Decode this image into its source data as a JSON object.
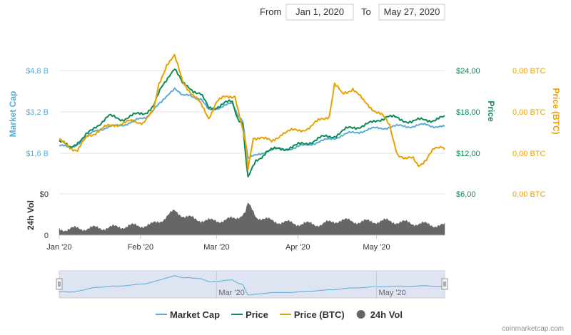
{
  "range_selector": {
    "from_label": "From",
    "from_value": "Jan 1, 2020",
    "to_label": "To",
    "to_value": "May 27, 2020"
  },
  "chart_data": {
    "type": "line",
    "x_start": "2020-01-01",
    "x_end": "2020-05-27",
    "x_tick_labels": [
      "Jan '20",
      "Feb '20",
      "Mar '20",
      "Apr '20",
      "May '20"
    ],
    "navigator_tick_labels": [
      "Mar '20",
      "May '20"
    ],
    "axes": {
      "market_cap": {
        "title": "Market Cap",
        "ticks": [
          "$1,6 B",
          "$3,2 B",
          "$4,8 B"
        ],
        "tick_values": [
          1.6,
          3.2,
          4.8
        ],
        "color": "#5bacd8"
      },
      "price": {
        "title": "Price",
        "ticks": [
          "$6,00",
          "$12,00",
          "$18,00",
          "$24,00"
        ],
        "tick_values": [
          6,
          12,
          18,
          24
        ],
        "color": "#0e8a55"
      },
      "price_btc": {
        "title": "Price (BTC)",
        "ticks": [
          "0,00 BTC",
          "0,00 BTC",
          "0,00 BTC",
          "0,00 BTC"
        ],
        "color": "#e9a100"
      },
      "volume": {
        "title": "24h Vol",
        "ticks": [
          "$0",
          "0"
        ],
        "color": "#333333"
      }
    },
    "series": [
      {
        "name": "Market Cap",
        "axis": "market_cap",
        "color": "#5bacd8",
        "points": [
          [
            "2020-01-01",
            1.9
          ],
          [
            "2020-01-05",
            1.8
          ],
          [
            "2020-01-10",
            2.1
          ],
          [
            "2020-01-15",
            2.5
          ],
          [
            "2020-01-20",
            2.6
          ],
          [
            "2020-01-25",
            2.7
          ],
          [
            "2020-01-30",
            2.85
          ],
          [
            "2020-02-03",
            3.0
          ],
          [
            "2020-02-06",
            3.3
          ],
          [
            "2020-02-09",
            3.55
          ],
          [
            "2020-02-12",
            3.95
          ],
          [
            "2020-02-14",
            4.15
          ],
          [
            "2020-02-17",
            3.8
          ],
          [
            "2020-02-20",
            3.85
          ],
          [
            "2020-02-24",
            3.7
          ],
          [
            "2020-02-27",
            3.25
          ],
          [
            "2020-03-01",
            3.35
          ],
          [
            "2020-03-04",
            3.45
          ],
          [
            "2020-03-07",
            3.5
          ],
          [
            "2020-03-09",
            3.1
          ],
          [
            "2020-03-11",
            2.9
          ],
          [
            "2020-03-12",
            2.1
          ],
          [
            "2020-03-13",
            1.4
          ],
          [
            "2020-03-16",
            1.5
          ],
          [
            "2020-03-20",
            1.7
          ],
          [
            "2020-03-25",
            1.75
          ],
          [
            "2020-03-31",
            1.8
          ],
          [
            "2020-04-05",
            1.95
          ],
          [
            "2020-04-10",
            2.05
          ],
          [
            "2020-04-15",
            2.2
          ],
          [
            "2020-04-20",
            2.35
          ],
          [
            "2020-04-25",
            2.45
          ],
          [
            "2020-04-30",
            2.55
          ],
          [
            "2020-05-05",
            2.6
          ],
          [
            "2020-05-10",
            2.65
          ],
          [
            "2020-05-15",
            2.65
          ],
          [
            "2020-05-20",
            2.7
          ],
          [
            "2020-05-27",
            2.6
          ]
        ]
      },
      {
        "name": "Price",
        "axis": "price",
        "color": "#0e8a55",
        "points": [
          [
            "2020-01-01",
            13.6
          ],
          [
            "2020-01-05",
            13.0
          ],
          [
            "2020-01-10",
            14.0
          ],
          [
            "2020-01-15",
            16.0
          ],
          [
            "2020-01-20",
            17.3
          ],
          [
            "2020-01-25",
            17.0
          ],
          [
            "2020-01-30",
            17.5
          ],
          [
            "2020-02-03",
            18.0
          ],
          [
            "2020-02-06",
            18.8
          ],
          [
            "2020-02-09",
            21.5
          ],
          [
            "2020-02-12",
            23.5
          ],
          [
            "2020-02-14",
            24.4
          ],
          [
            "2020-02-17",
            22.0
          ],
          [
            "2020-02-20",
            21.5
          ],
          [
            "2020-02-24",
            20.5
          ],
          [
            "2020-02-27",
            18.5
          ],
          [
            "2020-03-01",
            18.8
          ],
          [
            "2020-03-04",
            19.2
          ],
          [
            "2020-03-07",
            19.4
          ],
          [
            "2020-03-09",
            17.2
          ],
          [
            "2020-03-11",
            16.5
          ],
          [
            "2020-03-12",
            12.0
          ],
          [
            "2020-03-13",
            8.3
          ],
          [
            "2020-03-16",
            10.8
          ],
          [
            "2020-03-20",
            12.3
          ],
          [
            "2020-03-25",
            12.6
          ],
          [
            "2020-03-31",
            13.0
          ],
          [
            "2020-04-05",
            13.6
          ],
          [
            "2020-04-10",
            14.2
          ],
          [
            "2020-04-15",
            14.6
          ],
          [
            "2020-04-20",
            15.5
          ],
          [
            "2020-04-25",
            16.0
          ],
          [
            "2020-04-30",
            16.4
          ],
          [
            "2020-05-05",
            17.5
          ],
          [
            "2020-05-10",
            16.8
          ],
          [
            "2020-05-15",
            16.7
          ],
          [
            "2020-05-20",
            16.8
          ],
          [
            "2020-05-27",
            17.1
          ]
        ]
      },
      {
        "name": "Price (BTC)",
        "axis": "price",
        "color": "#e9a100",
        "points": [
          [
            "2020-01-01",
            13.8
          ],
          [
            "2020-01-04",
            13.2
          ],
          [
            "2020-01-08",
            12.4
          ],
          [
            "2020-01-12",
            14.5
          ],
          [
            "2020-01-16",
            15.3
          ],
          [
            "2020-01-22",
            16.2
          ],
          [
            "2020-01-28",
            16.5
          ],
          [
            "2020-02-02",
            16.6
          ],
          [
            "2020-02-06",
            18.0
          ],
          [
            "2020-02-08",
            22.0
          ],
          [
            "2020-02-11",
            25.0
          ],
          [
            "2020-02-14",
            26.0
          ],
          [
            "2020-02-17",
            22.5
          ],
          [
            "2020-02-20",
            21.0
          ],
          [
            "2020-02-24",
            19.0
          ],
          [
            "2020-02-27",
            17.2
          ],
          [
            "2020-03-01",
            19.5
          ],
          [
            "2020-03-04",
            20.0
          ],
          [
            "2020-03-08",
            20.5
          ],
          [
            "2020-03-10",
            17.0
          ],
          [
            "2020-03-12",
            13.5
          ],
          [
            "2020-03-13",
            9.5
          ],
          [
            "2020-03-15",
            14.2
          ],
          [
            "2020-03-18",
            14.5
          ],
          [
            "2020-03-22",
            13.5
          ],
          [
            "2020-03-26",
            15.0
          ],
          [
            "2020-04-01",
            15.3
          ],
          [
            "2020-04-06",
            15.8
          ],
          [
            "2020-04-10",
            17.0
          ],
          [
            "2020-04-13",
            17.5
          ],
          [
            "2020-04-15",
            22.0
          ],
          [
            "2020-04-18",
            20.5
          ],
          [
            "2020-04-22",
            21.5
          ],
          [
            "2020-04-26",
            19.5
          ],
          [
            "2020-04-30",
            18.4
          ],
          [
            "2020-05-03",
            17.5
          ],
          [
            "2020-05-06",
            16.0
          ],
          [
            "2020-05-09",
            12.0
          ],
          [
            "2020-05-12",
            11.0
          ],
          [
            "2020-05-15",
            11.3
          ],
          [
            "2020-05-17",
            10.4
          ],
          [
            "2020-05-20",
            11.0
          ],
          [
            "2020-05-23",
            12.5
          ],
          [
            "2020-05-26",
            13.2
          ],
          [
            "2020-05-27",
            12.8
          ]
        ]
      },
      {
        "name": "24h Vol",
        "axis": "volume",
        "color": "#666666",
        "type": "area",
        "points": [
          [
            "2020-01-01",
            0.14
          ],
          [
            "2020-01-10",
            0.16
          ],
          [
            "2020-01-20",
            0.18
          ],
          [
            "2020-01-28",
            0.22
          ],
          [
            "2020-02-05",
            0.24
          ],
          [
            "2020-02-10",
            0.4
          ],
          [
            "2020-02-14",
            0.58
          ],
          [
            "2020-02-18",
            0.45
          ],
          [
            "2020-02-22",
            0.38
          ],
          [
            "2020-02-28",
            0.34
          ],
          [
            "2020-03-04",
            0.36
          ],
          [
            "2020-03-08",
            0.4
          ],
          [
            "2020-03-12",
            0.55
          ],
          [
            "2020-03-13",
            0.75
          ],
          [
            "2020-03-16",
            0.45
          ],
          [
            "2020-03-22",
            0.34
          ],
          [
            "2020-03-31",
            0.28
          ],
          [
            "2020-04-10",
            0.26
          ],
          [
            "2020-04-17",
            0.36
          ],
          [
            "2020-04-25",
            0.32
          ],
          [
            "2020-05-05",
            0.34
          ],
          [
            "2020-05-12",
            0.3
          ],
          [
            "2020-05-20",
            0.26
          ],
          [
            "2020-05-27",
            0.22
          ]
        ]
      }
    ],
    "legend": {
      "placement": "bottom",
      "items": [
        {
          "label": "Market Cap",
          "color": "#5bacd8",
          "marker": "line"
        },
        {
          "label": "Price",
          "color": "#0e8a55",
          "marker": "line"
        },
        {
          "label": "Price (BTC)",
          "color": "#e9a100",
          "marker": "line"
        },
        {
          "label": "24h Vol",
          "color": "#666666",
          "marker": "circle"
        }
      ]
    },
    "credit": "coinmarketcap.com"
  }
}
